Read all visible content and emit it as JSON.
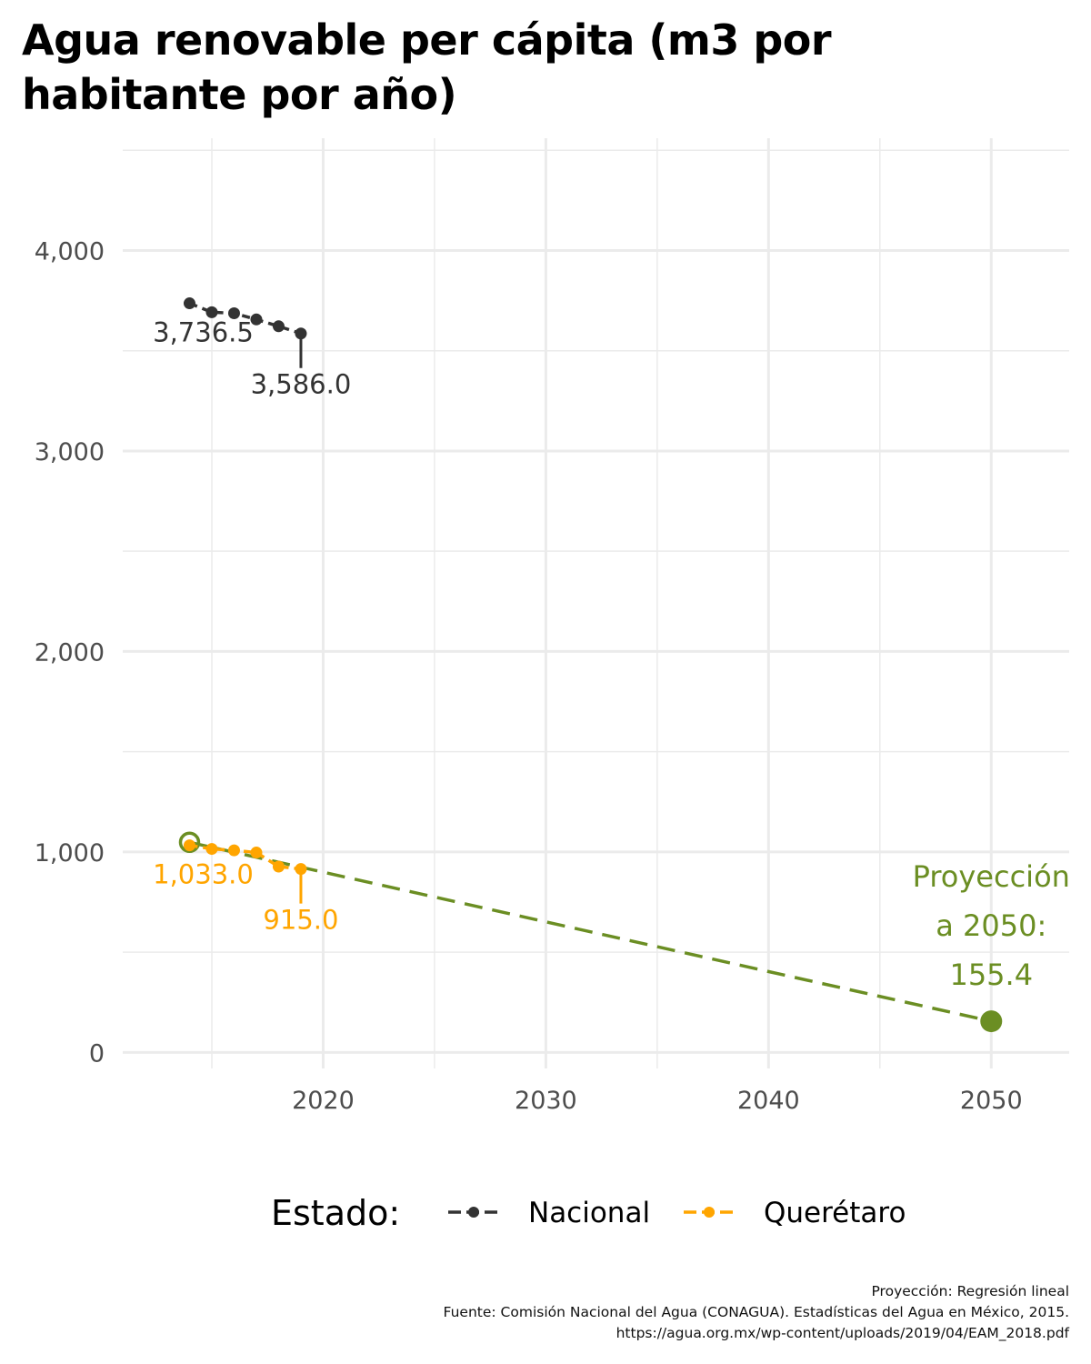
{
  "title": "Agua renovable per cápita (m3 por habitante por año)",
  "colors": {
    "nacional": "#333333",
    "queretaro": "#ffa500",
    "projection": "#6b8e23",
    "grid": "#ebebeb",
    "tick_text": "#4d4d4d"
  },
  "chart_data": {
    "type": "line",
    "title": "Agua renovable per cápita (m3 por habitante por año)",
    "xlabel": "",
    "ylabel": "",
    "xlim": [
      2011,
      2053.5
    ],
    "ylim": [
      -80,
      4560
    ],
    "x_ticks": [
      2020,
      2030,
      2040,
      2050
    ],
    "x_tick_labels": [
      "2020",
      "2030",
      "2040",
      "2050"
    ],
    "y_ticks": [
      0,
      1000,
      2000,
      3000,
      4000
    ],
    "y_tick_labels": [
      "0",
      "1,000",
      "2,000",
      "3,000",
      "4,000"
    ],
    "grid": true,
    "legend": {
      "title": "Estado:",
      "position": "bottom",
      "entries": [
        "Nacional",
        "Querétaro"
      ]
    },
    "series": [
      {
        "name": "Nacional",
        "color": "#333333",
        "x": [
          2014,
          2015,
          2016,
          2017,
          2018,
          2019
        ],
        "y": [
          3736.5,
          3692,
          3687,
          3656,
          3622,
          3586.0
        ],
        "labels": [
          {
            "x": 2014,
            "y": 3736.5,
            "text": "3,736.5"
          },
          {
            "x": 2019,
            "y": 3586.0,
            "text": "3,586.0"
          }
        ]
      },
      {
        "name": "Querétaro",
        "color": "#ffa500",
        "x": [
          2014,
          2015,
          2016,
          2017,
          2018,
          2019
        ],
        "y": [
          1033.0,
          1015,
          1008,
          997,
          927,
          915.0
        ],
        "labels": [
          {
            "x": 2014,
            "y": 1033.0,
            "text": "1,033.0"
          },
          {
            "x": 2019,
            "y": 915.0,
            "text": "915.0"
          }
        ]
      }
    ],
    "projection": {
      "color": "#6b8e23",
      "x": [
        2014,
        2050
      ],
      "y": [
        1048,
        155.4
      ],
      "label_lines": [
        "Proyección",
        "a 2050:",
        "155.4"
      ]
    }
  },
  "caption": {
    "line1": "Proyección: Regresión lineal",
    "line2": "Fuente: Comisión Nacional del Agua (CONAGUA). Estadísticas del Agua en México, 2015.",
    "line3": "https://agua.org.mx/wp-content/uploads/2019/04/EAM_2018.pdf"
  }
}
